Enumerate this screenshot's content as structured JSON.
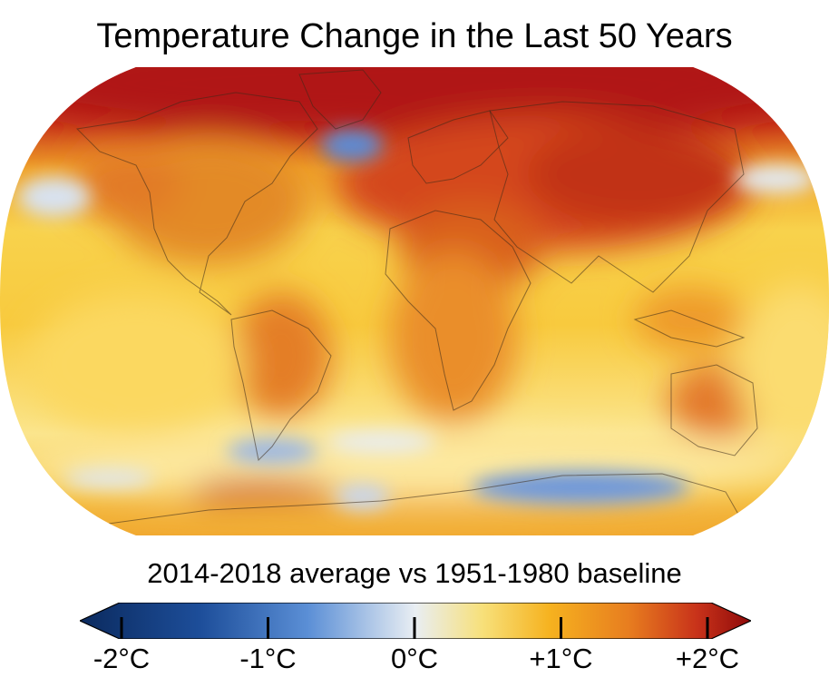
{
  "title": "Temperature Change in the Last 50 Years",
  "subtitle": "2014-2018 average vs 1951-1980 baseline",
  "colorbar": {
    "range_min": -2,
    "range_max": 2,
    "ticks": [
      {
        "value": -2,
        "label": "-2°C"
      },
      {
        "value": -1,
        "label": "-1°C"
      },
      {
        "value": 0,
        "label": "0°C"
      },
      {
        "value": 1,
        "label": "+1°C"
      },
      {
        "value": 2,
        "label": "+2°C"
      }
    ],
    "colors": [
      "#0b2a5e",
      "#1d4e9a",
      "#5b8fd6",
      "#e9eef3",
      "#f7e07a",
      "#f6b21f",
      "#e77c1f",
      "#c8321a",
      "#8e0a0a"
    ]
  },
  "map": {
    "projection": "Robinson",
    "colors": {
      "arctic": "#b81a12",
      "land_warm": "#e0702a",
      "ocean_warm": "#f6c23a",
      "ocean_mild": "#fbe48a",
      "cool": "#7fa7e0",
      "near_zero": "#eef2f4"
    }
  }
}
